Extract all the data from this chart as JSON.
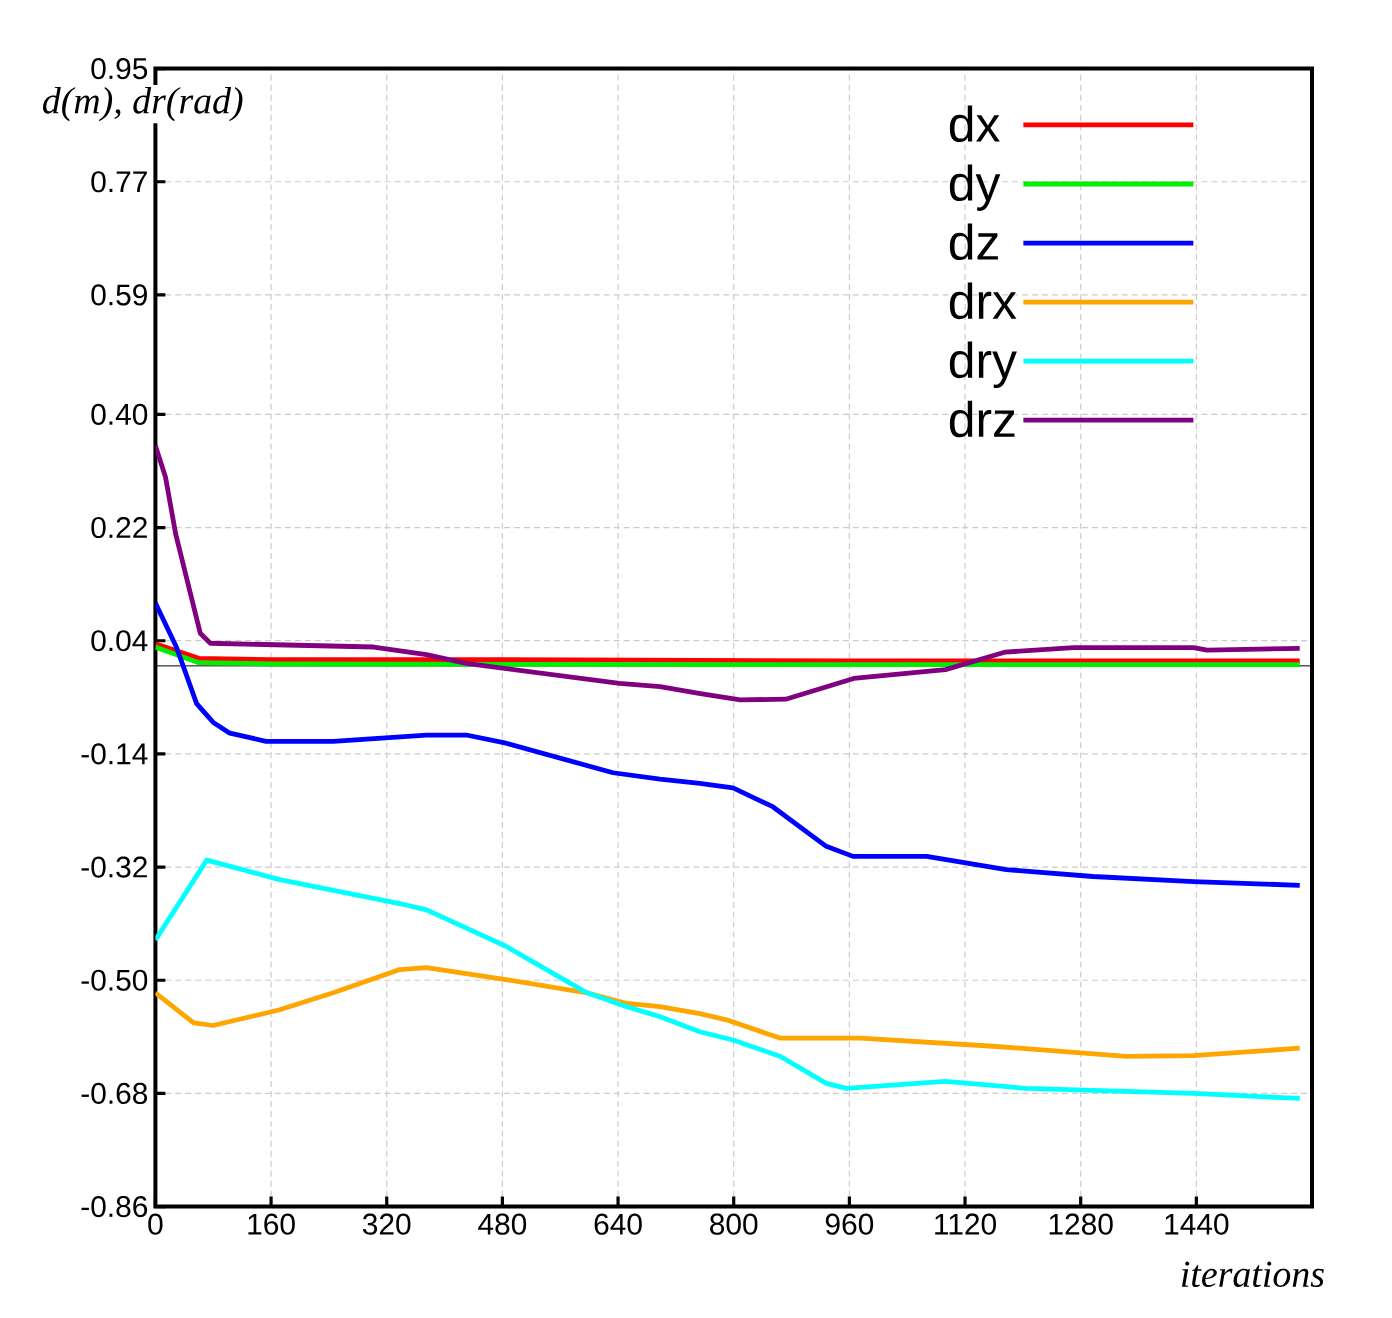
{
  "chart_data": {
    "type": "line",
    "xlabel": "iterations",
    "ylabel": "d(m), dr(rad)",
    "xlim": [
      0,
      1600
    ],
    "ylim": [
      -0.86,
      0.95
    ],
    "xticks": [
      0,
      160,
      320,
      480,
      640,
      800,
      960,
      1120,
      1280,
      1440
    ],
    "yticks": [
      -0.86,
      -0.68,
      {
        "value": -0.5,
        "label": "-0.50"
      },
      -0.32,
      -0.14,
      0.04,
      0.22,
      {
        "value": 0.4,
        "label": "0.40"
      },
      0.59,
      0.77,
      0.95
    ],
    "grid": true,
    "legend": "top right",
    "line_style": "solid",
    "ref_lines": [
      {
        "axis": "y",
        "value": 0,
        "color": "#000000"
      }
    ],
    "series": [
      {
        "name": "dx",
        "color": "#ff0000",
        "x": [
          0,
          60,
          160,
          480,
          960,
          1583
        ],
        "values": [
          0.035,
          0.012,
          0.01,
          0.01,
          0.008,
          0.008
        ]
      },
      {
        "name": "dy",
        "color": "#00ee00",
        "x": [
          0,
          60,
          160,
          800,
          1583
        ],
        "values": [
          0.03,
          0.005,
          0.003,
          0.002,
          0.002
        ]
      },
      {
        "name": "dz",
        "color": "#0000ff",
        "x": [
          0,
          29,
          57,
          80,
          103,
          153,
          246,
          375,
          430,
          485,
          633,
          698,
          753,
          799,
          854,
          928,
          965,
          1067,
          1177,
          1297,
          1436,
          1583
        ],
        "values": [
          0.1,
          0.03,
          -0.06,
          -0.09,
          -0.107,
          -0.12,
          -0.12,
          -0.11,
          -0.11,
          -0.123,
          -0.17,
          -0.18,
          -0.187,
          -0.194,
          -0.224,
          -0.287,
          -0.303,
          -0.303,
          -0.324,
          -0.335,
          -0.343,
          -0.349
        ]
      },
      {
        "name": "drx",
        "color": "#ffa500",
        "x": [
          0,
          53,
          80,
          172,
          246,
          338,
          375,
          485,
          597,
          652,
          698,
          753,
          790,
          864,
          975,
          1159,
          1343,
          1436,
          1583
        ],
        "values": [
          -0.52,
          -0.568,
          -0.572,
          -0.547,
          -0.52,
          -0.483,
          -0.48,
          -0.499,
          -0.52,
          -0.537,
          -0.542,
          -0.553,
          -0.563,
          -0.592,
          -0.592,
          -0.605,
          -0.621,
          -0.62,
          -0.608
        ]
      },
      {
        "name": "dry",
        "color": "#00ffff",
        "x": [
          0,
          71,
          172,
          338,
          375,
          485,
          597,
          652,
          698,
          753,
          799,
          864,
          928,
          956,
          1093,
          1204,
          1436,
          1583
        ],
        "values": [
          -0.436,
          -0.309,
          -0.34,
          -0.378,
          -0.388,
          -0.446,
          -0.52,
          -0.542,
          -0.558,
          -0.582,
          -0.595,
          -0.621,
          -0.664,
          -0.672,
          -0.661,
          -0.672,
          -0.68,
          -0.688
        ]
      },
      {
        "name": "drz",
        "color": "#800080",
        "x": [
          0,
          14,
          28,
          62,
          76,
          302,
          375,
          430,
          642,
          698,
          754,
          809,
          872,
          966,
          1093,
          1176,
          1270,
          1436,
          1455,
          1583
        ],
        "values": [
          0.35,
          0.3,
          0.21,
          0.052,
          0.036,
          0.03,
          0.018,
          0.004,
          -0.028,
          -0.033,
          -0.044,
          -0.054,
          -0.053,
          -0.02,
          -0.006,
          0.022,
          0.029,
          0.029,
          0.025,
          0.028
        ]
      }
    ]
  }
}
